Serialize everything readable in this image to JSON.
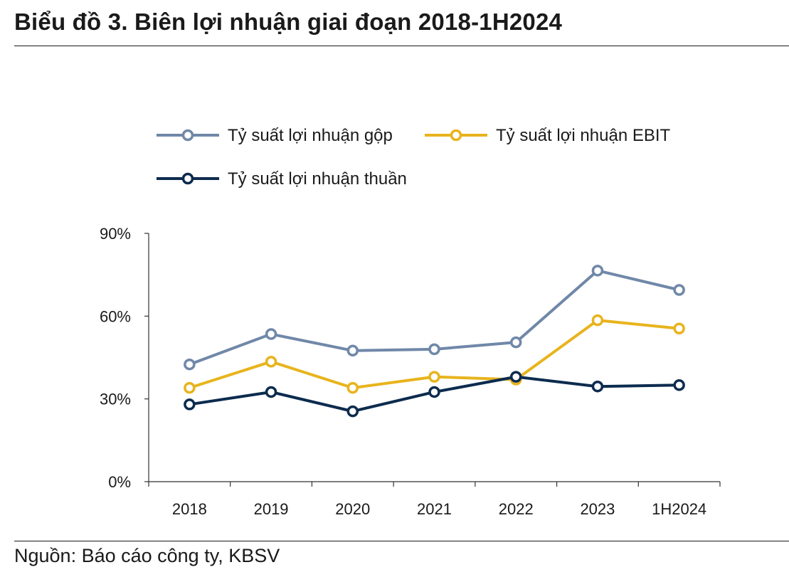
{
  "title": "Biểu đồ 3. Biên lợi nhuận giai đoạn 2018-1H2024",
  "source": "Nguồn: Báo cáo công ty, KBSV",
  "chart_data": {
    "type": "line",
    "categories": [
      "2018",
      "2019",
      "2020",
      "2021",
      "2022",
      "2023",
      "1H2024"
    ],
    "yticks": [
      "0%",
      "30%",
      "60%",
      "90%"
    ],
    "ylim": [
      0,
      90
    ],
    "unit": "%",
    "grid": false,
    "legend_position": "top",
    "series": [
      {
        "name": "Tỷ suất lợi nhuận gộp",
        "color": "#7088A8",
        "values": [
          42.5,
          53.5,
          47.5,
          48,
          50.5,
          76.5,
          69.5
        ]
      },
      {
        "name": "Tỷ suất lợi nhuận EBIT",
        "color": "#E8B41D",
        "values": [
          34,
          43.5,
          34,
          38,
          37,
          58.5,
          55.5
        ]
      },
      {
        "name": "Tỷ suất lợi nhuận thuần",
        "color": "#0C2B4E",
        "values": [
          28,
          32.5,
          25.5,
          32.5,
          38,
          34.5,
          35
        ]
      }
    ]
  }
}
